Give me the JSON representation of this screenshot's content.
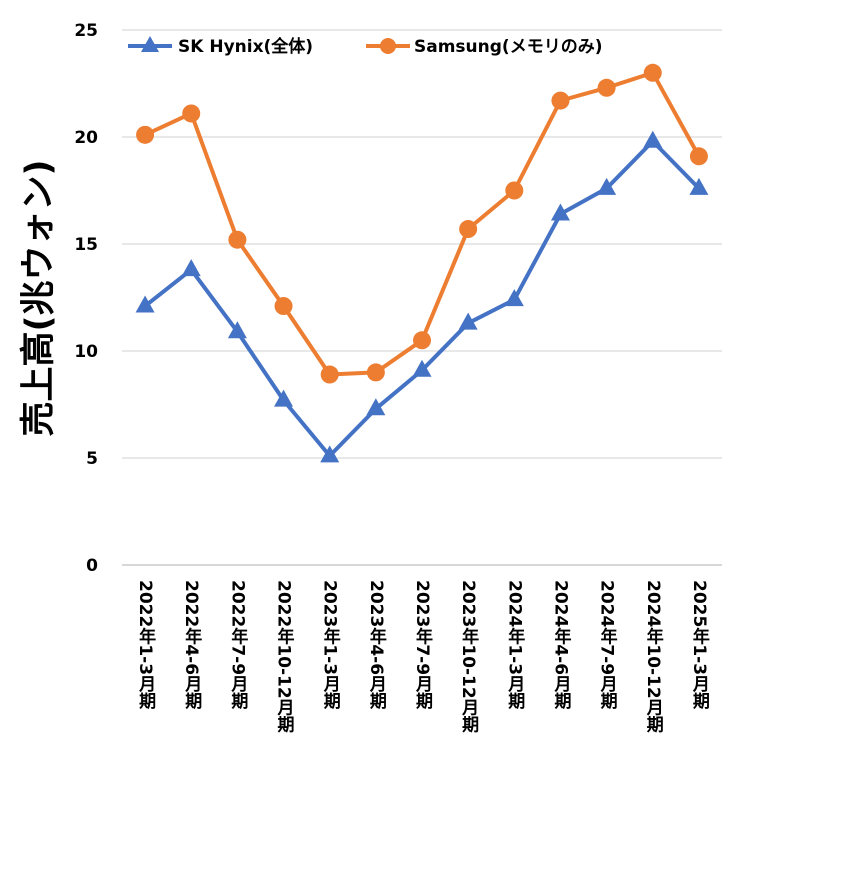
{
  "chart_data": {
    "type": "line",
    "title": "",
    "xlabel": "",
    "ylabel": "売上高(兆ウォン)",
    "ylim": [
      0,
      25
    ],
    "yticks": [
      0,
      5,
      10,
      15,
      20,
      25
    ],
    "grid": true,
    "legend_position": "top",
    "categories": [
      "2022年1-3月期",
      "2022年4-6月期",
      "2022年7-9月期",
      "2022年10-12月期",
      "2023年1-3月期",
      "2023年4-6月期",
      "2023年7-9月期",
      "2023年10-12月期",
      "2024年1-3月期",
      "2024年4-6月期",
      "2024年7-9月期",
      "2024年10-12月期",
      "2025年1-3月期"
    ],
    "series": [
      {
        "name": "SK Hynix(全体)",
        "color": "#4472C4",
        "marker": "triangle",
        "values": [
          12.1,
          13.8,
          10.9,
          7.7,
          5.1,
          7.3,
          9.1,
          11.3,
          12.4,
          16.4,
          17.6,
          19.8,
          17.6
        ]
      },
      {
        "name": "Samsung(メモリのみ)",
        "color": "#ED7D31",
        "marker": "circle",
        "values": [
          20.1,
          21.1,
          15.2,
          12.1,
          8.9,
          9.0,
          10.5,
          15.7,
          17.5,
          21.7,
          22.3,
          23.0,
          19.1
        ]
      }
    ]
  }
}
